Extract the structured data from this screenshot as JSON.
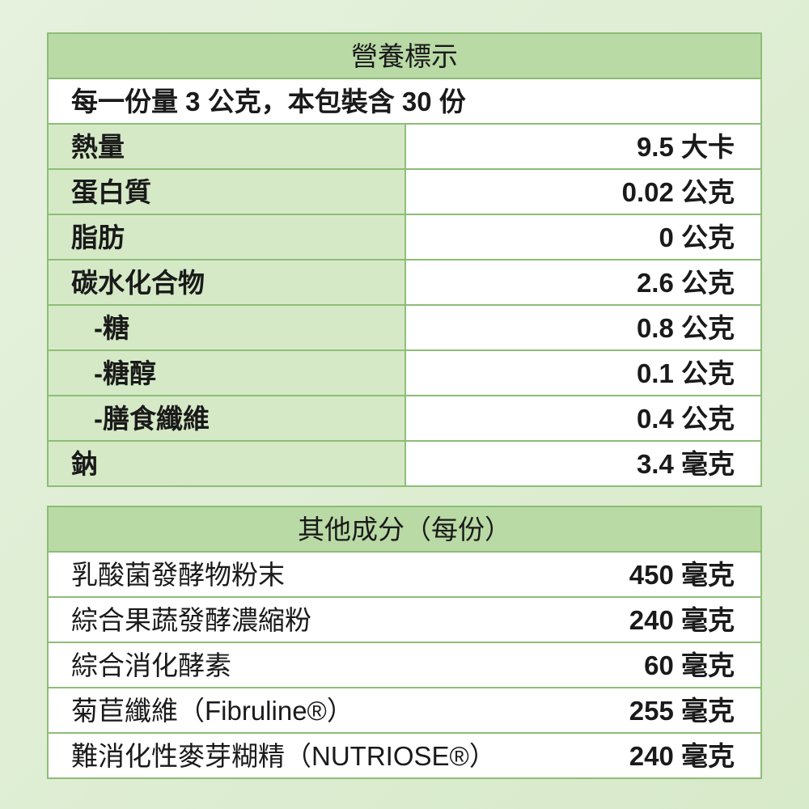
{
  "nutrition": {
    "title": "營養標示",
    "serving": "每一份量 3 公克，本包裝含 30 份",
    "rows": [
      {
        "label": "熱量",
        "value": "9.5 大卡",
        "sub": false
      },
      {
        "label": "蛋白質",
        "value": "0.02 公克",
        "sub": false
      },
      {
        "label": "脂肪",
        "value": "0 公克",
        "sub": false
      },
      {
        "label": "碳水化合物",
        "value": "2.6 公克",
        "sub": false
      },
      {
        "label": "-糖",
        "value": "0.8 公克",
        "sub": true
      },
      {
        "label": "-糖醇",
        "value": "0.1 公克",
        "sub": true
      },
      {
        "label": "-膳食纖維",
        "value": "0.4 公克",
        "sub": true
      },
      {
        "label": "鈉",
        "value": "3.4 毫克",
        "sub": false
      }
    ]
  },
  "other": {
    "title": "其他成分（每份）",
    "rows": [
      {
        "label": "乳酸菌發酵物粉末",
        "value": "450 毫克"
      },
      {
        "label": "綜合果蔬發酵濃縮粉",
        "value": "240 毫克"
      },
      {
        "label": "綜合消化酵素",
        "value": "60 毫克"
      },
      {
        "label": "菊苣纖維（Fibruline®）",
        "value": "255 毫克"
      },
      {
        "label": "難消化性麥芽糊精（NUTRIOSE®）",
        "value": "240 毫克"
      }
    ]
  },
  "colors": {
    "header": "#b9d9a5",
    "label_cell": "#d5e9c7",
    "border": "#8dbd77"
  }
}
